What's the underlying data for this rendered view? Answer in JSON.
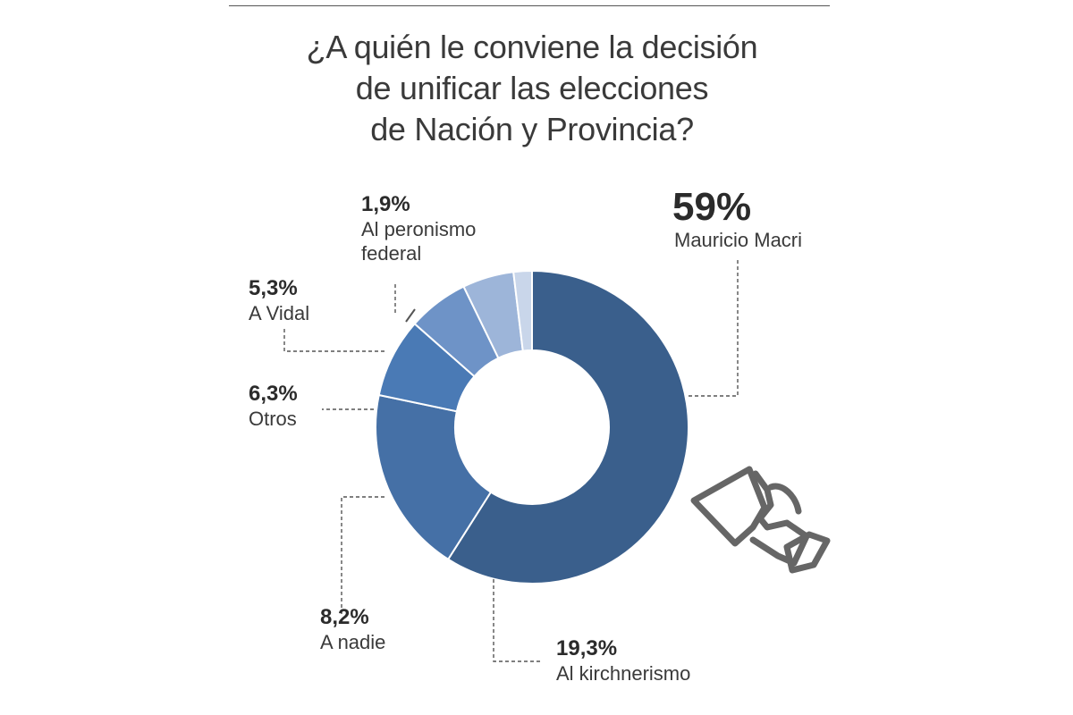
{
  "title_lines": [
    "¿A quién le conviene la decisión",
    "de unificar las elecciones",
    "de Nación y Provincia?"
  ],
  "chart_data": {
    "type": "pie",
    "donut": true,
    "title": "¿A quién le conviene la decisión de unificar las elecciones de Nación y Provincia?",
    "categories": [
      "Mauricio Macri",
      "Al kirchnerismo",
      "A nadie",
      "Otros",
      "A Vidal",
      "Al peronismo federal"
    ],
    "values": [
      59,
      19.3,
      8.2,
      6.3,
      5.3,
      1.9
    ],
    "value_labels": [
      "59%",
      "19,3%",
      "8,2%",
      "6,3%",
      "5,3%",
      "1,9%"
    ],
    "label_lines": [
      [
        "Mauricio Macri"
      ],
      [
        "Al kirchnerismo"
      ],
      [
        "A nadie"
      ],
      [
        "Otros"
      ],
      [
        "A Vidal"
      ],
      [
        "Al peronismo",
        "federal"
      ]
    ],
    "colors": [
      "#3a5f8c",
      "#4570a6",
      "#4a7ab5",
      "#6e93c7",
      "#9db5d9",
      "#c9d6ea"
    ],
    "highlight_color": "#3a5f8c"
  },
  "icon": "hand-holding-ballot-icon"
}
